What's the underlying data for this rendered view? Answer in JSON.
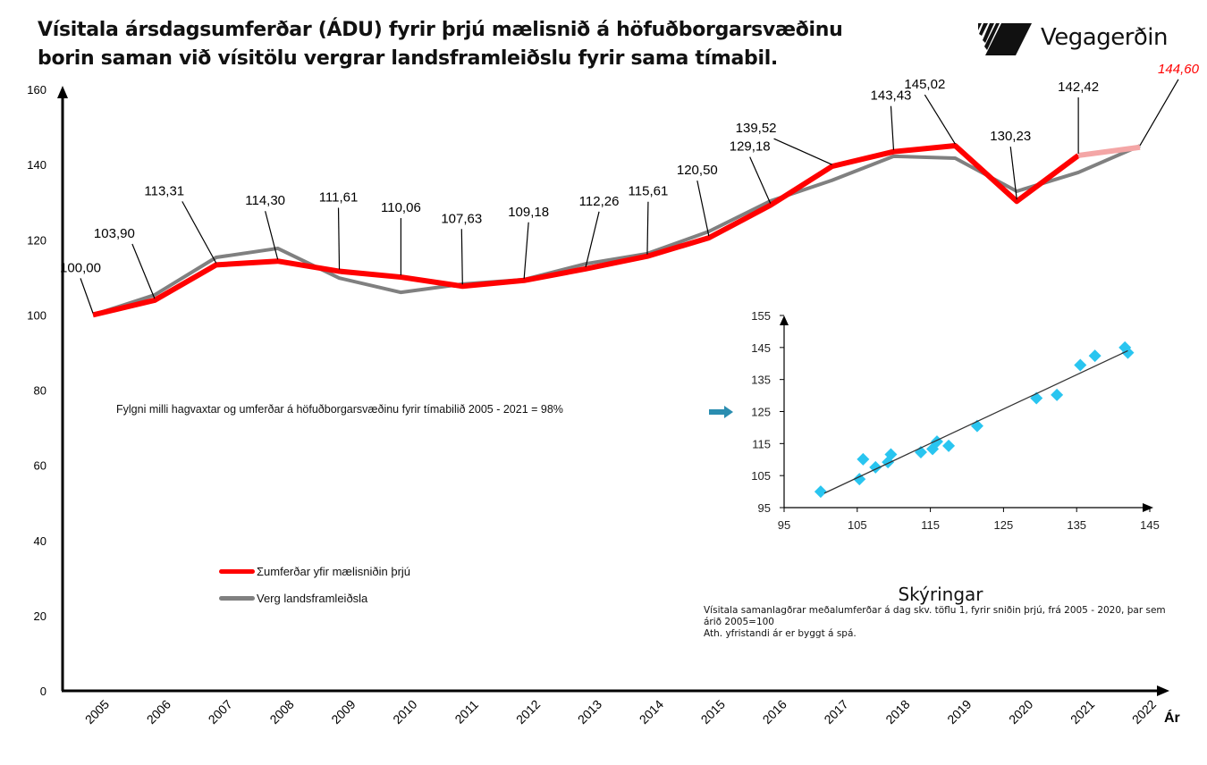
{
  "header": {
    "title_line1": "Vísitala ársdagsumferðar (ÁDU) fyrir þrjú mælisnið á höfuðborgarsvæðinu",
    "title_line2": "borin saman við vísitölu vergrar landsframleiðslu fyrir sama tímabil.",
    "logo_text": "Vegagerðin"
  },
  "colors": {
    "traffic": "#ff0000",
    "traffic_forecast": "#f4a6a6",
    "gdp": "#808080",
    "scatter_point": "#29c5f0",
    "arrow": "#2a8db0",
    "forecast_label": "#ff0000"
  },
  "correlation_note": "Fylgni milli hagvaxtar og umferðar á höfuðborgarsvæðinu fyrir tímabilið 2005 - 2021 = 98%",
  "legend": {
    "traffic_label": "Σumferðar yfir mælisniðin þrjú",
    "gdp_label": "Verg landsframleiðsla"
  },
  "explanation": {
    "title": "Skýringar",
    "body": "Vísitala samanlagðrar meðalumferðar á dag  skv. töflu 1, fyrir sniðin  þrjú, frá 2005 - 2020, þar sem árið 2005=100\nAth. yfristandi ár er byggt á spá."
  },
  "chart_data": [
    {
      "type": "line",
      "title": "Vísitala ársdagsumferðar (ÁDU) fyrir þrjú mælisnið á höfuðborgarsvæðinu borin saman við vísitölu vergrar landsframleiðslu fyrir sama tímabil.",
      "xlabel": "Ár",
      "ylabel": "",
      "ylim": [
        0,
        160
      ],
      "yticks": [
        0,
        20,
        40,
        60,
        80,
        100,
        120,
        140,
        160
      ],
      "grid": false,
      "legend_position": "bottom-left",
      "categories": [
        "2005",
        "2006",
        "2007",
        "2008",
        "2009",
        "2010",
        "2011",
        "2012",
        "2013",
        "2014",
        "2015",
        "2016",
        "2017",
        "2018",
        "2019",
        "2020",
        "2021",
        "2022"
      ],
      "series": [
        {
          "name": "Σumferðar yfir mælisniðin þrjú",
          "values": [
            100.0,
            103.9,
            113.31,
            114.3,
            111.61,
            110.06,
            107.63,
            109.18,
            112.26,
            115.61,
            120.5,
            129.18,
            139.52,
            143.43,
            145.02,
            130.23,
            142.42,
            144.6
          ],
          "labels": [
            "100,00",
            "103,90",
            "113,31",
            "114,30",
            "111,61",
            "110,06",
            "107,63",
            "109,18",
            "112,26",
            "115,61",
            "120,50",
            "129,18",
            "139,52",
            "143,43",
            "145,02",
            "130,23",
            "142,42",
            "144,60"
          ],
          "forecast_from_index": 16,
          "forecast_label_style": "italic-red"
        },
        {
          "name": "Verg landsframleiðsla",
          "values": [
            100.0,
            105.3,
            115.3,
            117.7,
            109.8,
            106.0,
            108.2,
            109.4,
            113.6,
            116.3,
            122.2,
            130.3,
            135.8,
            142.2,
            141.7,
            132.9,
            137.9,
            145.0
          ]
        }
      ]
    },
    {
      "type": "scatter",
      "title": "",
      "xlabel": "",
      "ylabel": "",
      "xlim": [
        95,
        145
      ],
      "ylim": [
        95,
        155
      ],
      "xticks": [
        95,
        105,
        115,
        125,
        135,
        145
      ],
      "yticks": [
        95,
        105,
        115,
        125,
        135,
        145,
        155
      ],
      "points": [
        [
          100.0,
          100.0
        ],
        [
          105.3,
          103.9
        ],
        [
          105.8,
          110.1
        ],
        [
          107.5,
          107.6
        ],
        [
          109.2,
          109.2
        ],
        [
          109.6,
          111.6
        ],
        [
          113.7,
          112.3
        ],
        [
          115.3,
          113.3
        ],
        [
          115.9,
          115.6
        ],
        [
          117.5,
          114.3
        ],
        [
          121.4,
          120.5
        ],
        [
          129.5,
          129.2
        ],
        [
          132.3,
          130.2
        ],
        [
          135.5,
          139.5
        ],
        [
          137.5,
          142.4
        ],
        [
          141.6,
          145.0
        ],
        [
          142.0,
          143.4
        ]
      ],
      "trendline": [
        [
          100.5,
          99.5
        ],
        [
          142.0,
          144.0
        ]
      ]
    }
  ]
}
